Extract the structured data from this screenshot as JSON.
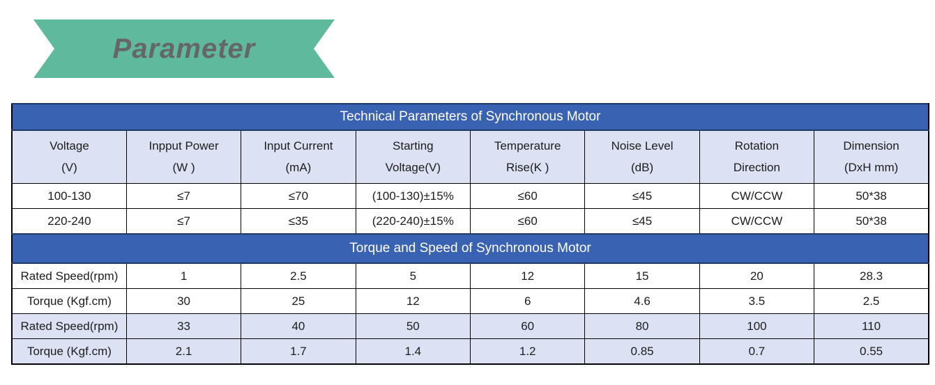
{
  "banner": {
    "label": "Parameter",
    "bg_color": "#5FBA9D",
    "text_color": "#666669"
  },
  "colors": {
    "band_blue": "#3A62B2",
    "band_border_navy": "#1F3864",
    "header_lavender": "#DCE2F3",
    "grid_black": "#000000"
  },
  "table": {
    "section1": {
      "title": "Technical Parameters of Synchronous Motor",
      "columns": [
        {
          "line1": "Voltage",
          "line2": "(V)"
        },
        {
          "line1": "Inpput Power",
          "line2": "(W )"
        },
        {
          "line1": "Input Current",
          "line2": "(mA)"
        },
        {
          "line1": "Starting",
          "line2": "Voltage(V)"
        },
        {
          "line1": "Temperature",
          "line2": "Rise(K )"
        },
        {
          "line1": "Noise Level",
          "line2": "(dB)"
        },
        {
          "line1": "Rotation",
          "line2": "Direction"
        },
        {
          "line1": "Dimension",
          "line2": "(DxH mm)"
        }
      ],
      "rows": [
        [
          "100-130",
          "≤7",
          "≤70",
          "(100-130)±15%",
          "≤60",
          "≤45",
          "CW/CCW",
          "50*38"
        ],
        [
          "220-240",
          "≤7",
          "≤35",
          "(220-240)±15%",
          "≤60",
          "≤45",
          "CW/CCW",
          "50*38"
        ]
      ]
    },
    "section2": {
      "title": "Torque and Speed of Synchronous Motor",
      "rows": [
        {
          "label": "Rated Speed(rpm)",
          "values": [
            "1",
            "2.5",
            "5",
            "12",
            "15",
            "20",
            "28.3"
          ]
        },
        {
          "label": "Torque (Kgf.cm)",
          "values": [
            "30",
            "25",
            "12",
            "6",
            "4.6",
            "3.5",
            "2.5"
          ]
        },
        {
          "label": "Rated Speed(rpm)",
          "values": [
            "33",
            "40",
            "50",
            "60",
            "80",
            "100",
            "110"
          ]
        },
        {
          "label": "Torque (Kgf.cm)",
          "values": [
            "2.1",
            "1.7",
            "1.4",
            "1.2",
            "0.85",
            "0.7",
            "0.55"
          ]
        }
      ]
    }
  }
}
